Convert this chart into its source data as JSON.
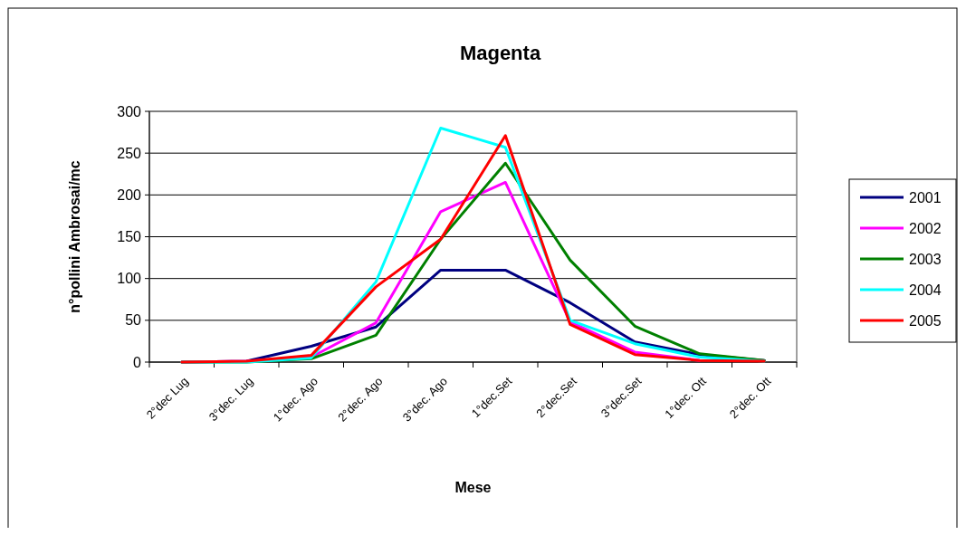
{
  "chart_data": {
    "type": "line",
    "title": "Magenta",
    "xlabel": "Mese",
    "ylabel": "n°pollini Ambrosai/mc",
    "categories": [
      "2°dec Lug",
      "3°dec. Lug",
      "1°dec. Ago",
      "2°dec. Ago",
      "3°dec. Ago",
      "1°dec.Set",
      "2°dec.Set",
      "3°dec.Set",
      "1°dec. Ott",
      "2°dec. Ott"
    ],
    "series": [
      {
        "name": "2001",
        "color": "#000080",
        "values": [
          0,
          1,
          19,
          42,
          110,
          110,
          71,
          24,
          9,
          2
        ]
      },
      {
        "name": "2002",
        "color": "#ff00ff",
        "values": [
          0,
          1,
          6,
          47,
          180,
          215,
          48,
          12,
          2,
          null
        ]
      },
      {
        "name": "2003",
        "color": "#008000",
        "values": [
          0,
          0,
          4,
          32,
          147,
          238,
          122,
          43,
          10,
          2
        ]
      },
      {
        "name": "2004",
        "color": "#00ffff",
        "values": [
          0,
          0,
          5,
          96,
          280,
          257,
          50,
          22,
          6,
          1
        ]
      },
      {
        "name": "2005",
        "color": "#ff0000",
        "values": [
          0,
          1,
          8,
          90,
          147,
          271,
          45,
          9,
          2,
          1
        ]
      }
    ],
    "ylim": [
      0,
      300
    ],
    "yticks": [
      0,
      50,
      100,
      150,
      200,
      250,
      300
    ],
    "grid": "y",
    "legend": "right",
    "marker": "none",
    "line_style": "solid"
  }
}
